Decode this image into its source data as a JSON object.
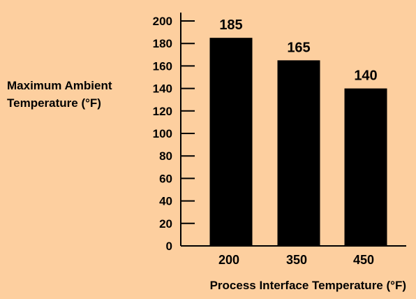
{
  "chart_data": {
    "type": "bar",
    "categories": [
      "200",
      "350",
      "450"
    ],
    "values": [
      185,
      165,
      140
    ],
    "data_labels": [
      "185",
      "165",
      "140"
    ],
    "ylabel_lines": [
      "Maximum Ambient",
      "Temperature (°F)"
    ],
    "xlabel": "Process Interface Temperature (°F)",
    "ylim": [
      0,
      200
    ],
    "yticks": [
      0,
      20,
      40,
      60,
      80,
      100,
      120,
      140,
      160,
      180,
      200
    ],
    "grid": false,
    "background_color": "#FDCF9F",
    "bar_color": "#000000"
  }
}
